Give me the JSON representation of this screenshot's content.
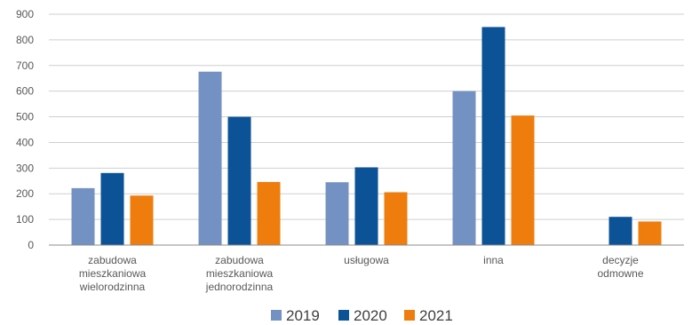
{
  "chart_data": {
    "type": "bar",
    "categories": [
      [
        "zabudowa",
        "mieszkaniowa",
        "wielorodzinna"
      ],
      [
        "zabudowa",
        "mieszkaniowa",
        "jednorodzinna"
      ],
      [
        "usługowa"
      ],
      [
        "inna"
      ],
      [
        "decyzje",
        "odmowne"
      ]
    ],
    "series": [
      {
        "name": "2019",
        "color": "#7491C4",
        "values": [
          222,
          676,
          245,
          600,
          0
        ]
      },
      {
        "name": "2020",
        "color": "#0B5297",
        "values": [
          281,
          500,
          303,
          850,
          110
        ]
      },
      {
        "name": "2021",
        "color": "#EE7D0E",
        "values": [
          193,
          246,
          206,
          505,
          92
        ]
      }
    ],
    "yticks": [
      "0",
      "100",
      "200",
      "300",
      "400",
      "500",
      "600",
      "700",
      "800",
      "900"
    ],
    "ylim": [
      0,
      900
    ],
    "grid": true,
    "legend_position": "bottom"
  }
}
